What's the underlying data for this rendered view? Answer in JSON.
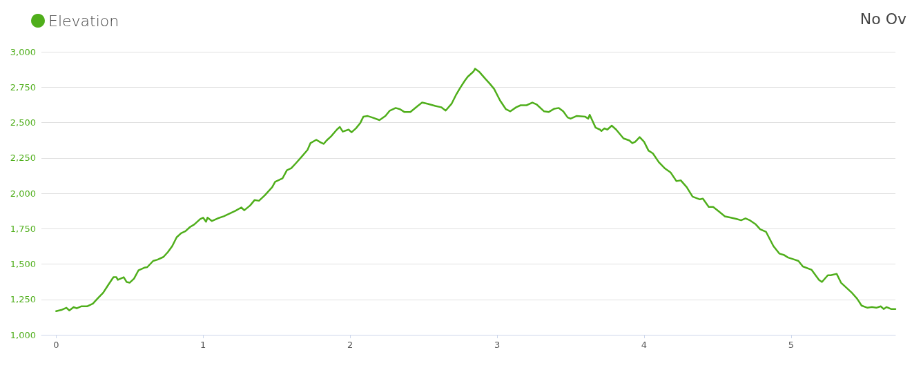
{
  "chart_data": {
    "type": "line",
    "legend": "top left",
    "grid": "y",
    "marker": "none",
    "line_style": "solid",
    "annotations": [
      "No Ov"
    ],
    "xlim": [
      -0.1,
      5.71
    ],
    "xticks": [
      0,
      1,
      2,
      3,
      4,
      5
    ],
    "ylim": [
      1000,
      3000
    ],
    "yticks": [
      {
        "value": 1000,
        "label": "1,000"
      },
      {
        "value": 1250,
        "label": "1,250"
      },
      {
        "value": 1500,
        "label": "1,500"
      },
      {
        "value": 1750,
        "label": "1,750"
      },
      {
        "value": 2000,
        "label": "2,000"
      },
      {
        "value": 2250,
        "label": "2,250"
      },
      {
        "value": 2500,
        "label": "2,500"
      },
      {
        "value": 2750,
        "label": "2,750"
      },
      {
        "value": 3000,
        "label": "3,000"
      }
    ],
    "series": [
      {
        "name": "Elevation",
        "color": "#4fae1b",
        "x": [
          0,
          0.04,
          0.07,
          0.09,
          0.12,
          0.14,
          0.17,
          0.21,
          0.25,
          0.28,
          0.32,
          0.35,
          0.39,
          0.41,
          0.42,
          0.46,
          0.48,
          0.5,
          0.53,
          0.56,
          0.6,
          0.62,
          0.66,
          0.69,
          0.73,
          0.76,
          0.79,
          0.82,
          0.85,
          0.88,
          0.91,
          0.94,
          0.98,
          1.0,
          1.02,
          1.03,
          1.06,
          1.1,
          1.14,
          1.18,
          1.22,
          1.26,
          1.28,
          1.32,
          1.35,
          1.38,
          1.42,
          1.47,
          1.49,
          1.54,
          1.57,
          1.6,
          1.63,
          1.67,
          1.71,
          1.73,
          1.77,
          1.8,
          1.82,
          1.84,
          1.87,
          1.91,
          1.93,
          1.95,
          1.99,
          2.01,
          2.04,
          2.07,
          2.09,
          2.12,
          2.15,
          2.2,
          2.24,
          2.27,
          2.31,
          2.34,
          2.37,
          2.41,
          2.46,
          2.49,
          2.53,
          2.58,
          2.62,
          2.65,
          2.69,
          2.72,
          2.75,
          2.78,
          2.8,
          2.84,
          2.85,
          2.88,
          2.92,
          2.95,
          2.98,
          3.02,
          3.06,
          3.09,
          3.13,
          3.16,
          3.2,
          3.24,
          3.27,
          3.32,
          3.35,
          3.39,
          3.42,
          3.45,
          3.48,
          3.5,
          3.54,
          3.6,
          3.62,
          3.63,
          3.67,
          3.7,
          3.71,
          3.73,
          3.75,
          3.78,
          3.81,
          3.86,
          3.9,
          3.92,
          3.94,
          3.97,
          4.0,
          4.03,
          4.06,
          4.1,
          4.14,
          4.18,
          4.22,
          4.25,
          4.29,
          4.33,
          4.38,
          4.4,
          4.44,
          4.47,
          4.51,
          4.55,
          4.59,
          4.63,
          4.66,
          4.69,
          4.72,
          4.76,
          4.79,
          4.83,
          4.88,
          4.92,
          4.95,
          4.98,
          5.01,
          5.05,
          5.08,
          5.14,
          5.19,
          5.21,
          5.25,
          5.27,
          5.31,
          5.34,
          5.41,
          5.45,
          5.48,
          5.52,
          5.55,
          5.58,
          5.61,
          5.63,
          5.65,
          5.68,
          5.71
        ],
        "values": [
          1167,
          1177,
          1191,
          1172,
          1196,
          1187,
          1201,
          1201,
          1220,
          1254,
          1297,
          1345,
          1407,
          1407,
          1388,
          1407,
          1373,
          1368,
          1397,
          1455,
          1474,
          1478,
          1522,
          1531,
          1550,
          1584,
          1627,
          1689,
          1718,
          1732,
          1761,
          1780,
          1818,
          1828,
          1799,
          1828,
          1804,
          1823,
          1837,
          1857,
          1876,
          1900,
          1880,
          1914,
          1952,
          1947,
          1986,
          2043,
          2081,
          2105,
          2163,
          2177,
          2211,
          2258,
          2306,
          2354,
          2378,
          2359,
          2349,
          2373,
          2402,
          2450,
          2469,
          2436,
          2450,
          2431,
          2459,
          2498,
          2541,
          2546,
          2536,
          2517,
          2546,
          2584,
          2603,
          2594,
          2574,
          2574,
          2617,
          2641,
          2632,
          2617,
          2608,
          2584,
          2632,
          2694,
          2747,
          2795,
          2823,
          2861,
          2880,
          2857,
          2809,
          2775,
          2737,
          2656,
          2594,
          2579,
          2608,
          2622,
          2622,
          2641,
          2627,
          2579,
          2574,
          2598,
          2603,
          2579,
          2536,
          2527,
          2546,
          2541,
          2527,
          2555,
          2464,
          2450,
          2440,
          2459,
          2450,
          2478,
          2450,
          2388,
          2373,
          2354,
          2364,
          2397,
          2364,
          2302,
          2282,
          2220,
          2177,
          2148,
          2086,
          2091,
          2043,
          1976,
          1957,
          1962,
          1904,
          1904,
          1871,
          1837,
          1828,
          1818,
          1809,
          1823,
          1809,
          1780,
          1746,
          1727,
          1627,
          1574,
          1565,
          1546,
          1536,
          1522,
          1483,
          1459,
          1388,
          1373,
          1421,
          1421,
          1431,
          1368,
          1301,
          1254,
          1206,
          1191,
          1196,
          1191,
          1201,
          1182,
          1196,
          1182,
          1182
        ]
      }
    ]
  }
}
